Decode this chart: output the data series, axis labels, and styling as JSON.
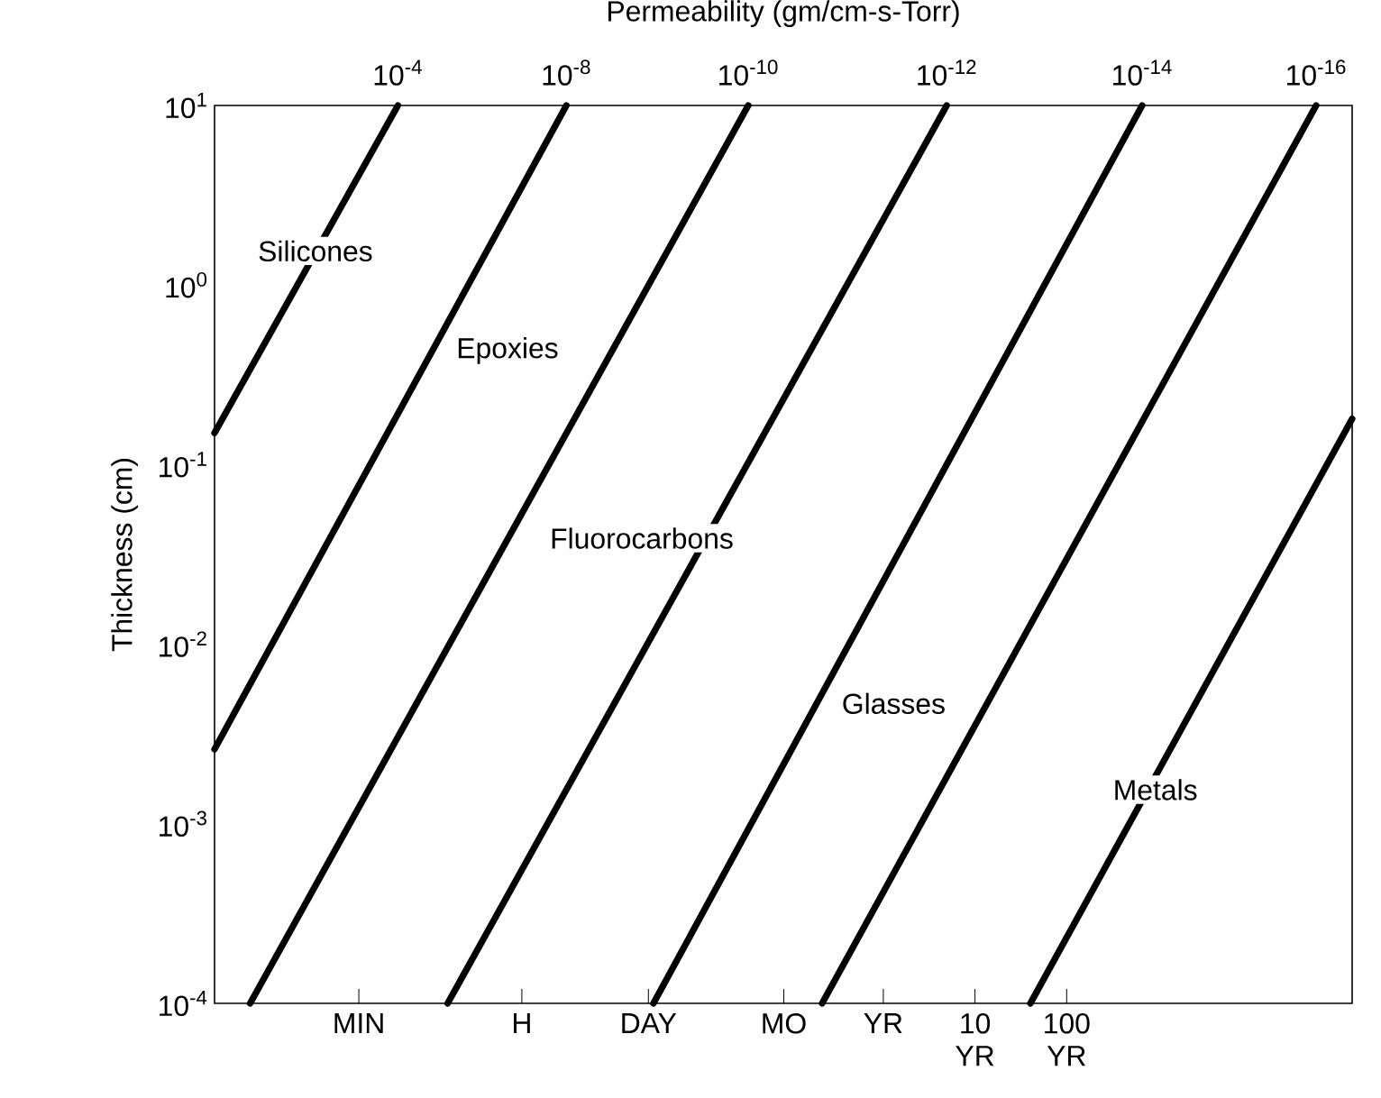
{
  "chart_data": {
    "type": "line",
    "title": "Permeability (gm/cm-s-Torr)",
    "ylabel": "Thickness (cm)",
    "log": "xy",
    "xlim": [
      5.07e-08,
      130000
    ],
    "ylim": [
      0.0001,
      10
    ],
    "xticks": [
      {
        "value": 1.901e-06,
        "label": "MIN"
      },
      {
        "value": 0.0001141,
        "label": "H"
      },
      {
        "value": 0.002738,
        "label": "DAY"
      },
      {
        "value": 0.0821,
        "label": "MO"
      },
      {
        "value": 1,
        "label": "YR"
      },
      {
        "value": 10,
        "label": "10 YR"
      },
      {
        "value": 100,
        "label": "100 YR"
      }
    ],
    "yticks": [
      {
        "value": 10,
        "label": "10$^{1}$"
      },
      {
        "value": 1,
        "label": "10$^{0}$"
      },
      {
        "value": 0.1,
        "label": "10$^{-1}$"
      },
      {
        "value": 0.01,
        "label": "10$^{-2}$"
      },
      {
        "value": 0.001,
        "label": "10$^{-3}$"
      },
      {
        "value": 0.0001,
        "label": "10$^{-4}$"
      }
    ],
    "series": [
      {
        "name": "10$^{-4}$",
        "color": "#000000",
        "x": [
          5.07e-08,
          5.07e-06
        ],
        "values": [
          0.15,
          10
        ]
      },
      {
        "name": "10$^{-8}$",
        "color": "#000000",
        "x": [
          5.07e-08,
          0.000349
        ],
        "values": [
          0.0026,
          10
        ]
      },
      {
        "name": "10$^{-10}$",
        "color": "#000000",
        "x": [
          1.24e-07,
          0.0336
        ],
        "values": [
          0.0001,
          10
        ]
      },
      {
        "name": "10$^{-12}$",
        "color": "#000000",
        "x": [
          1.77e-05,
          4.91
        ],
        "values": [
          0.0001,
          10
        ]
      },
      {
        "name": "10$^{-14}$",
        "color": "#000000",
        "x": [
          0.00311,
          665
        ],
        "values": [
          0.0001,
          10
        ]
      },
      {
        "name": "10$^{-16}$",
        "color": "#000000",
        "x": [
          0.215,
          52600
        ],
        "values": [
          0.0001,
          10
        ]
      },
      {
        "color": "#000000",
        "x": [
          40.2,
          130000
        ],
        "values": [
          0.0001,
          0.18
        ]
      }
    ],
    "annotations": [
      "Silicones",
      "Epoxies",
      "Fluorocarbons",
      "Glasses",
      "Metals"
    ]
  }
}
